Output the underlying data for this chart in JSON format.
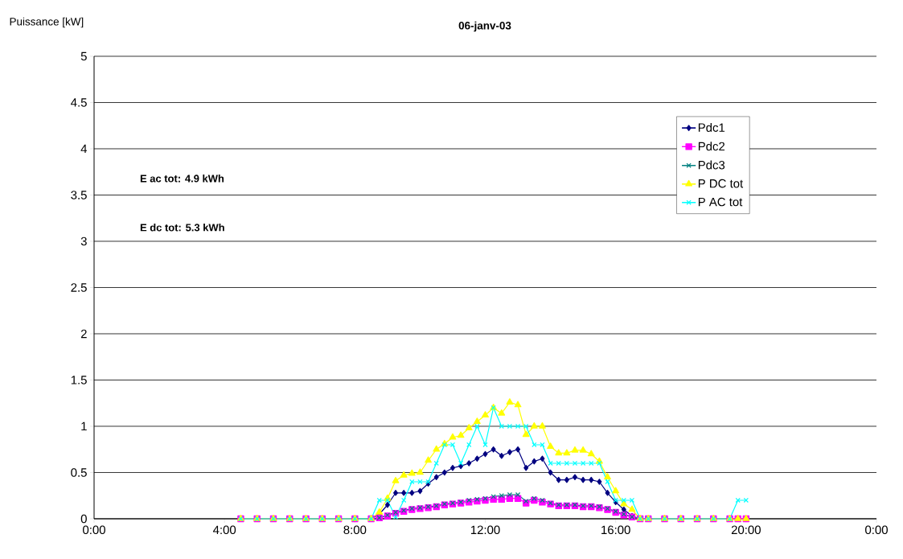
{
  "chart_data": {
    "type": "line",
    "title": "06-janv-03",
    "ylabel": "Puissance [kW]",
    "annotations": [
      "E ac tot:  4.9 kWh",
      "E dc tot:  5.3 kWh"
    ],
    "x": [
      4.5,
      5,
      5.5,
      6,
      6.5,
      7,
      7.5,
      8,
      8.5,
      8.75,
      9,
      9.25,
      9.5,
      9.75,
      10,
      10.25,
      10.5,
      10.75,
      11,
      11.25,
      11.5,
      11.75,
      12,
      12.25,
      12.5,
      12.75,
      13,
      13.25,
      13.5,
      13.75,
      14,
      14.25,
      14.5,
      14.75,
      15,
      15.25,
      15.5,
      15.75,
      16,
      16.25,
      16.5,
      16.75,
      17,
      17.5,
      18,
      18.5,
      19,
      19.5,
      19.75,
      20
    ],
    "series": [
      {
        "name": "Pdc1",
        "color": "#000080",
        "marker": "diamond",
        "values": [
          null,
          null,
          null,
          null,
          null,
          null,
          null,
          0,
          0,
          0.05,
          0.15,
          0.28,
          0.28,
          0.28,
          0.3,
          0.38,
          0.45,
          0.5,
          0.55,
          0.57,
          0.6,
          0.65,
          0.7,
          0.75,
          0.68,
          0.72,
          0.75,
          0.55,
          0.62,
          0.65,
          0.5,
          0.42,
          0.42,
          0.45,
          0.42,
          0.42,
          0.4,
          0.28,
          0.18,
          0.1,
          0.03,
          0,
          0,
          null,
          null,
          null,
          null,
          null,
          null,
          null
        ]
      },
      {
        "name": "Pdc2",
        "color": "#ff00ff",
        "marker": "square",
        "values": [
          0,
          0,
          0,
          0,
          0,
          0,
          0,
          0,
          0,
          0.01,
          0.03,
          0.06,
          0.08,
          0.1,
          0.11,
          0.12,
          0.13,
          0.15,
          0.16,
          0.17,
          0.18,
          0.19,
          0.2,
          0.21,
          0.21,
          0.22,
          0.22,
          0.17,
          0.2,
          0.18,
          0.16,
          0.14,
          0.14,
          0.14,
          0.13,
          0.13,
          0.12,
          0.1,
          0.07,
          0.04,
          0.02,
          0,
          0,
          0,
          0,
          0,
          0,
          0,
          0,
          0
        ]
      },
      {
        "name": "Pdc3",
        "color": "#008080",
        "marker": "cross",
        "values": [
          null,
          null,
          null,
          null,
          null,
          null,
          null,
          0,
          0,
          0.01,
          0.04,
          0.07,
          0.09,
          0.11,
          0.12,
          0.13,
          0.14,
          0.16,
          0.17,
          0.18,
          0.2,
          0.21,
          0.22,
          0.24,
          0.25,
          0.26,
          0.26,
          0.19,
          0.22,
          0.2,
          0.17,
          0.15,
          0.15,
          0.15,
          0.14,
          0.14,
          0.13,
          0.11,
          0.08,
          0.05,
          0.02,
          0,
          0,
          null,
          null,
          null,
          null,
          null,
          null,
          null
        ]
      },
      {
        "name": "P DC tot",
        "color": "#ffff00",
        "marker": "triangle",
        "values": [
          0,
          0,
          0,
          0,
          0,
          0,
          0,
          0,
          0,
          0.07,
          0.22,
          0.41,
          0.47,
          0.49,
          0.5,
          0.63,
          0.75,
          0.81,
          0.88,
          0.9,
          0.98,
          1.05,
          1.12,
          1.2,
          1.14,
          1.26,
          1.23,
          0.91,
          1.0,
          1.0,
          0.78,
          0.71,
          0.71,
          0.74,
          0.74,
          0.7,
          0.62,
          0.45,
          0.3,
          0.16,
          0.1,
          0,
          0,
          0,
          0,
          0,
          0,
          0,
          0,
          0
        ]
      },
      {
        "name": "P AC tot",
        "color": "#00ffff",
        "marker": "cross",
        "values": [
          0,
          0,
          0,
          0,
          0,
          0,
          0,
          0,
          0,
          0.2,
          0.2,
          0.02,
          0.2,
          0.4,
          0.4,
          0.4,
          0.6,
          0.8,
          0.8,
          0.6,
          0.8,
          1.0,
          0.8,
          1.2,
          1.0,
          1.0,
          1.0,
          1.0,
          0.8,
          0.8,
          0.6,
          0.6,
          0.6,
          0.6,
          0.6,
          0.6,
          0.6,
          0.4,
          0.2,
          0.2,
          0.2,
          0,
          0,
          0,
          0,
          0,
          0,
          0,
          0.2,
          0.2
        ]
      }
    ],
    "xlim": [
      0,
      24
    ],
    "xticks": [
      {
        "value": 0,
        "label": "0:00"
      },
      {
        "value": 4,
        "label": "4:00"
      },
      {
        "value": 8,
        "label": "8:00"
      },
      {
        "value": 12,
        "label": "12:00"
      },
      {
        "value": 16,
        "label": "16:00"
      },
      {
        "value": 20,
        "label": "20:00"
      },
      {
        "value": 24,
        "label": "0:00"
      }
    ],
    "ylim": [
      0,
      5
    ],
    "yticks": [
      0,
      0.5,
      1,
      1.5,
      2,
      2.5,
      3,
      3.5,
      4,
      4.5,
      5
    ],
    "grid": "y",
    "legend": "right",
    "line_style": "solid"
  }
}
